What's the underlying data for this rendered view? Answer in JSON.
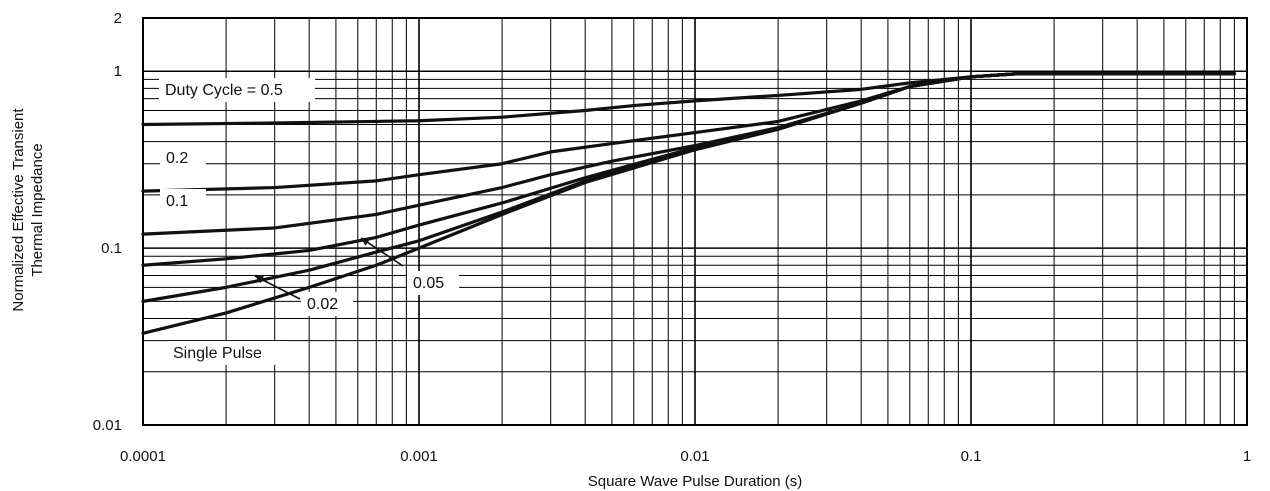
{
  "chart_data": {
    "type": "line",
    "title": "",
    "xlabel": "Square Wave Pulse Duration (s)",
    "ylabel": "Normalized Effective Transient",
    "ylabel_line2": "Thermal Impedance",
    "xscale": "log",
    "yscale": "log",
    "xlim": [
      0.0001,
      1
    ],
    "ylim": [
      0.01,
      2
    ],
    "grid": true,
    "legend": "none",
    "x_ticks": [
      0.0001,
      0.001,
      0.01,
      0.1,
      1
    ],
    "x_tick_labels": [
      "0.0001",
      "0.001",
      "0.01",
      "0.1",
      "1"
    ],
    "y_ticks": [
      0.01,
      0.1,
      1,
      2
    ],
    "y_tick_labels": [
      "0.01",
      "0.1",
      "1",
      "2"
    ],
    "series": [
      {
        "name": "Duty Cycle = 0.5",
        "label": "Duty Cycle = 0.5",
        "x": [
          0.0001,
          0.0003,
          0.001,
          0.002,
          0.004,
          0.006,
          0.01,
          0.02,
          0.04,
          0.06,
          0.1,
          0.15,
          0.3,
          0.6,
          0.9
        ],
        "y": [
          0.5,
          0.51,
          0.525,
          0.55,
          0.6,
          0.64,
          0.68,
          0.73,
          0.79,
          0.86,
          0.93,
          0.97,
          0.97,
          0.97,
          0.97
        ]
      },
      {
        "name": "0.2",
        "label": "0.2",
        "x": [
          0.0001,
          0.0003,
          0.0007,
          0.001,
          0.002,
          0.003,
          0.005,
          0.01,
          0.02,
          0.04,
          0.06,
          0.1,
          0.15,
          0.3,
          0.6,
          0.9
        ],
        "y": [
          0.21,
          0.22,
          0.24,
          0.26,
          0.3,
          0.35,
          0.39,
          0.45,
          0.52,
          0.68,
          0.82,
          0.93,
          0.97,
          0.97,
          0.97,
          0.97
        ]
      },
      {
        "name": "0.1",
        "label": "0.1",
        "x": [
          0.0001,
          0.0003,
          0.0007,
          0.001,
          0.002,
          0.003,
          0.005,
          0.01,
          0.02,
          0.04,
          0.06,
          0.1,
          0.15,
          0.3,
          0.6,
          0.9
        ],
        "y": [
          0.12,
          0.13,
          0.155,
          0.175,
          0.22,
          0.26,
          0.31,
          0.38,
          0.48,
          0.66,
          0.82,
          0.93,
          0.97,
          0.97,
          0.97,
          0.97
        ]
      },
      {
        "name": "0.05",
        "label": "0.05",
        "x": [
          0.0001,
          0.0002,
          0.0004,
          0.0007,
          0.001,
          0.002,
          0.004,
          0.01,
          0.02,
          0.04,
          0.06,
          0.1,
          0.15,
          0.3,
          0.6,
          0.9
        ],
        "y": [
          0.08,
          0.087,
          0.097,
          0.115,
          0.135,
          0.18,
          0.25,
          0.37,
          0.47,
          0.66,
          0.82,
          0.93,
          0.97,
          0.97,
          0.97,
          0.97
        ]
      },
      {
        "name": "0.02",
        "label": "0.02",
        "x": [
          0.0001,
          0.0002,
          0.0004,
          0.0007,
          0.001,
          0.002,
          0.004,
          0.01,
          0.02,
          0.04,
          0.06,
          0.1,
          0.15,
          0.3,
          0.6,
          0.9
        ],
        "y": [
          0.05,
          0.06,
          0.075,
          0.095,
          0.11,
          0.16,
          0.24,
          0.36,
          0.47,
          0.66,
          0.82,
          0.93,
          0.97,
          0.97,
          0.97,
          0.97
        ]
      },
      {
        "name": "Single Pulse",
        "label": "Single Pulse",
        "x": [
          0.0001,
          0.0002,
          0.0004,
          0.0007,
          0.001,
          0.002,
          0.004,
          0.01,
          0.02,
          0.04,
          0.06,
          0.1,
          0.15,
          0.3,
          0.6,
          0.9
        ],
        "y": [
          0.033,
          0.043,
          0.06,
          0.08,
          0.1,
          0.155,
          0.235,
          0.36,
          0.47,
          0.66,
          0.82,
          0.93,
          0.97,
          0.97,
          0.97,
          0.97
        ]
      }
    ]
  }
}
